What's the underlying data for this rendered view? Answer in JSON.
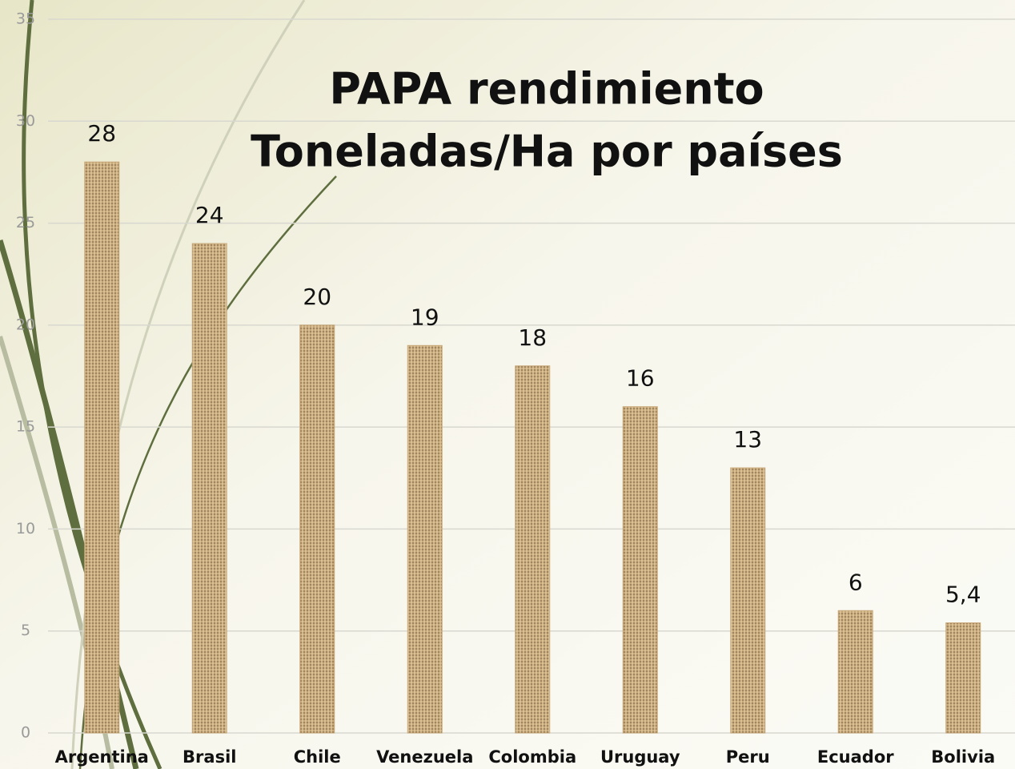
{
  "chart_data": {
    "type": "bar",
    "title": [
      "PAPA rendimiento",
      "Toneladas/Ha por países"
    ],
    "categories": [
      "Argentina",
      "Brasil",
      "Chile",
      "Venezuela",
      "Colombia",
      "Uruguay",
      "Peru",
      "Ecuador",
      "Bolivia"
    ],
    "values": [
      28,
      24,
      20,
      19,
      18,
      16,
      13,
      6,
      5.4
    ],
    "value_labels": [
      "28",
      "24",
      "20",
      "19",
      "18",
      "16",
      "13",
      "6",
      "5,4"
    ],
    "color": "#c8a878",
    "ylim": [
      0,
      35
    ],
    "yticks": [
      0,
      5,
      10,
      15,
      20,
      25,
      30,
      35
    ],
    "grid": true
  }
}
